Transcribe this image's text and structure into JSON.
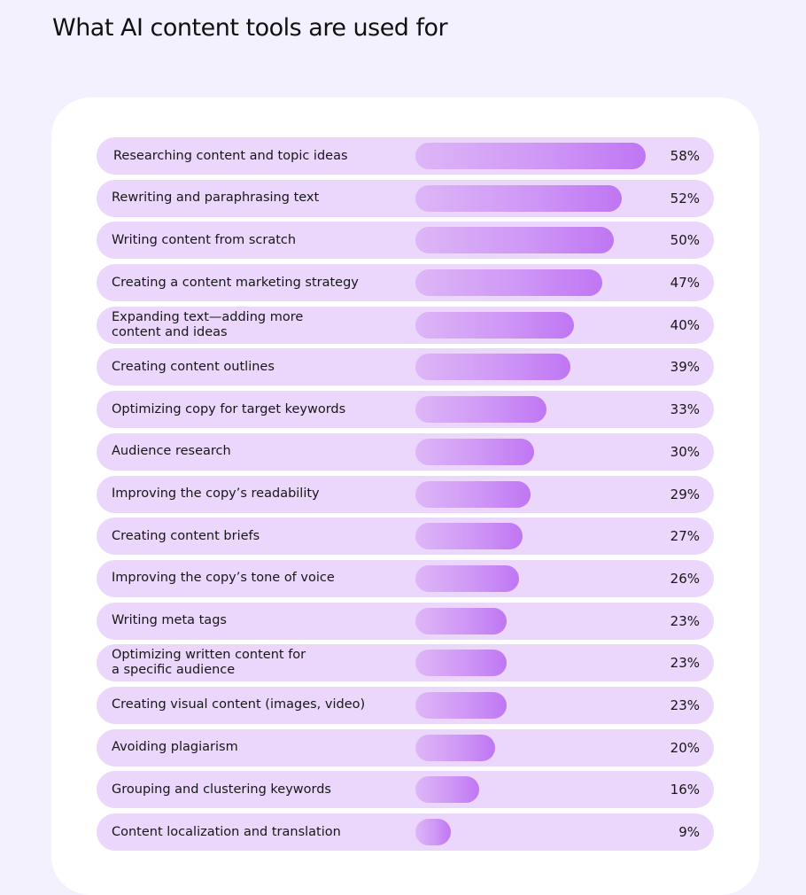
{
  "title": "What AI content tools are used for",
  "chart_data": {
    "type": "bar",
    "orientation": "horizontal",
    "title": "What AI content tools are used for",
    "xlim": [
      0,
      58
    ],
    "bar_color": "#c98cf5",
    "row_color": "#ead7fb",
    "categories": [
      "Researching content and topic ideas",
      "Rewriting and paraphrasing text",
      "Writing content from scratch",
      "Creating a content marketing strategy",
      "Expanding text—adding more\ncontent and ideas",
      "Creating content outlines",
      "Optimizing copy for target keywords",
      "Audience research",
      "Improving the copy’s readability",
      "Creating content briefs",
      "Improving the copy’s tone of voice",
      "Writing meta tags",
      "Optimizing written content for\na specific audience",
      "Creating visual content (images, video)",
      "Avoiding plagiarism",
      "Grouping and clustering keywords",
      "Content localization and translation"
    ],
    "values": [
      58,
      52,
      50,
      47,
      40,
      39,
      33,
      30,
      29,
      27,
      26,
      23,
      23,
      23,
      20,
      16,
      9
    ],
    "value_labels": [
      "58%",
      "52%",
      "50%",
      "47%",
      "40%",
      "39%",
      "33%",
      "30%",
      "29%",
      "27%",
      "26%",
      "23%",
      "23%",
      "23%",
      "20%",
      "16%",
      "9%"
    ]
  }
}
